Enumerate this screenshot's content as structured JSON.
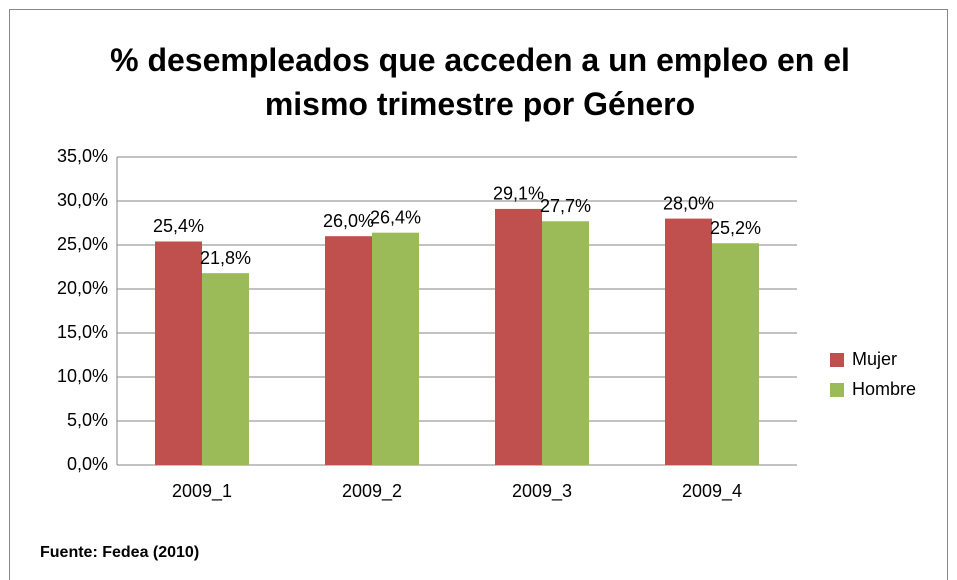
{
  "chart_data": {
    "type": "bar",
    "title": "% desempleados que acceden a un empleo en el mismo trimestre por Género",
    "categories": [
      "2009_1",
      "2009_2",
      "2009_3",
      "2009_4"
    ],
    "series": [
      {
        "name": "Mujer",
        "color": "#c0504d",
        "values": [
          25.4,
          26.0,
          29.1,
          28.0
        ],
        "value_labels": [
          "25,4%",
          "26,0%",
          "29,1%",
          "28,0%"
        ]
      },
      {
        "name": "Hombre",
        "color": "#9bbb59",
        "values": [
          21.8,
          26.4,
          27.7,
          25.2
        ],
        "value_labels": [
          "21,8%",
          "26,4%",
          "27,7%",
          "25,2%"
        ]
      }
    ],
    "ylim": [
      0,
      35
    ],
    "yticks": [
      {
        "value": 0,
        "label": "0,0%"
      },
      {
        "value": 5,
        "label": "5,0%"
      },
      {
        "value": 10,
        "label": "10,0%"
      },
      {
        "value": 15,
        "label": "15,0%"
      },
      {
        "value": 20,
        "label": "20,0%"
      },
      {
        "value": 25,
        "label": "25,0%"
      },
      {
        "value": 30,
        "label": "30,0%"
      },
      {
        "value": 35,
        "label": "35,0%"
      }
    ],
    "grid": true,
    "legend": "right",
    "annotation": "Fuente: Fedea (2010)"
  }
}
